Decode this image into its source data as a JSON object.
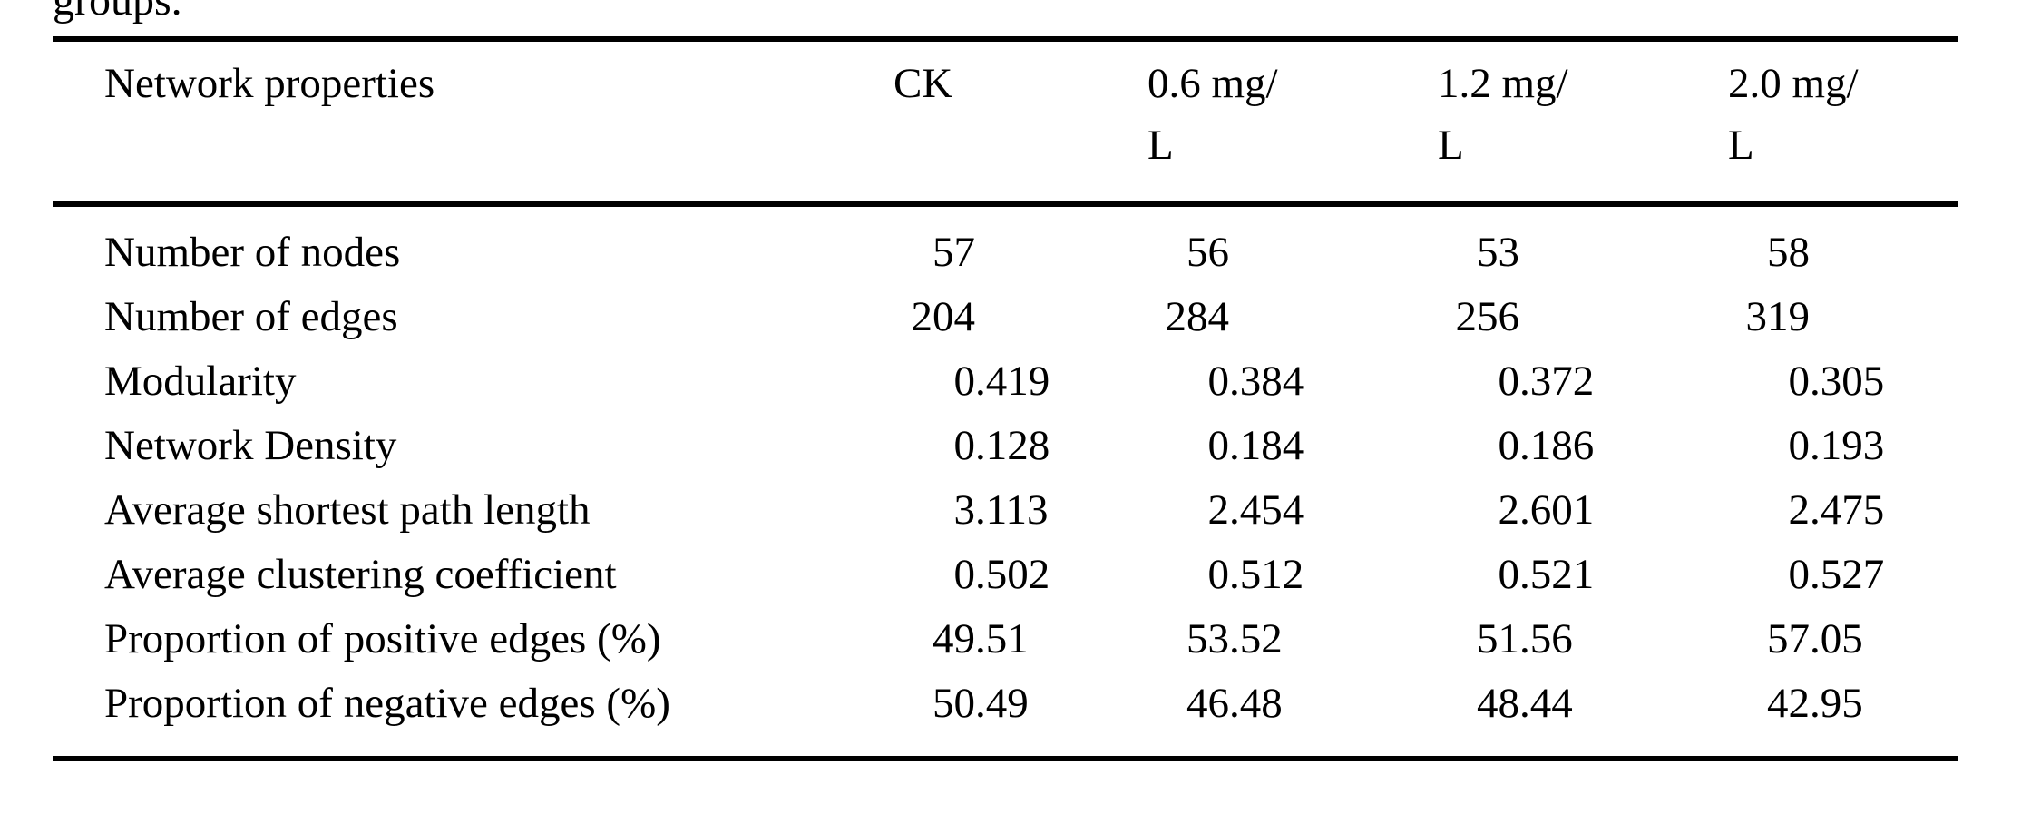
{
  "caption_tail": "groups.",
  "colors": {
    "background": "#ffffff",
    "text": "#000000",
    "rule": "#000000"
  },
  "table": {
    "header": {
      "property_label": "Network properties",
      "columns": [
        {
          "label": "CK",
          "lines": [
            "CK"
          ]
        },
        {
          "label": "0.6 mg/L",
          "lines": [
            "0.6 mg/",
            "L"
          ]
        },
        {
          "label": "1.2 mg/L",
          "lines": [
            "1.2 mg/",
            "L"
          ]
        },
        {
          "label": "2.0 mg/L",
          "lines": [
            "2.0 mg/",
            "L"
          ]
        }
      ]
    },
    "rows": [
      {
        "label": "Number of nodes",
        "values": [
          "57",
          "56",
          "53",
          "58"
        ]
      },
      {
        "label": "Number of edges",
        "values": [
          "204",
          "284",
          "256",
          "319"
        ]
      },
      {
        "label": "Modularity",
        "values": [
          "0.419",
          "0.384",
          "0.372",
          "0.305"
        ]
      },
      {
        "label": "Network Density",
        "values": [
          "0.128",
          "0.184",
          "0.186",
          "0.193"
        ]
      },
      {
        "label": "Average shortest path length",
        "values": [
          "3.113",
          "2.454",
          "2.601",
          "2.475"
        ]
      },
      {
        "label": "Average clustering coefficient",
        "values": [
          "0.502",
          "0.512",
          "0.521",
          "0.527"
        ]
      },
      {
        "label": "Proportion of positive edges (%)",
        "values": [
          "49.51",
          "53.52",
          "51.56",
          "57.05"
        ]
      },
      {
        "label": "Proportion of negative edges (%)",
        "values": [
          "50.49",
          "46.48",
          "48.44",
          "42.95"
        ]
      }
    ]
  }
}
